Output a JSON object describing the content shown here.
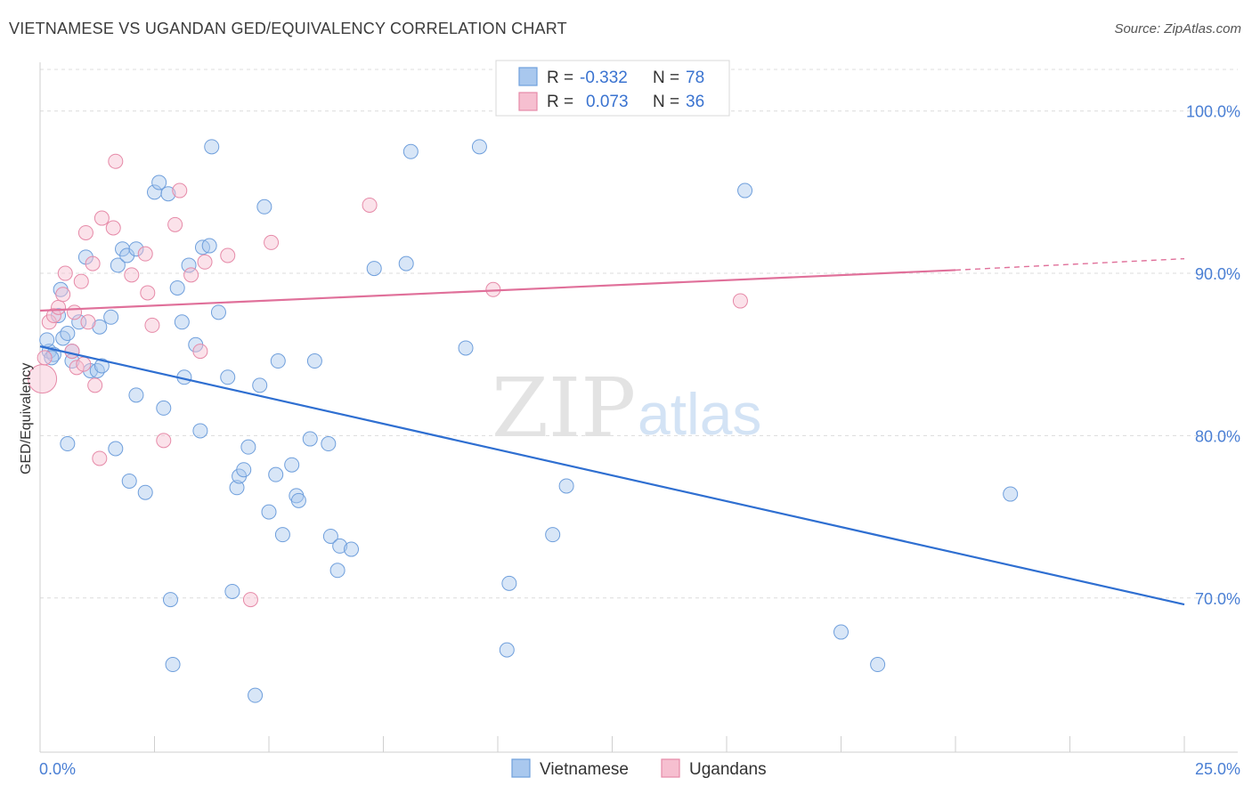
{
  "title": "VIETNAMESE VS UGANDAN GED/EQUIVALENCY CORRELATION CHART",
  "source": "Source: ZipAtlas.com",
  "watermark": {
    "zip": "ZIP",
    "atlas": "atlas"
  },
  "colors": {
    "blue_fill": "#a9c8ee",
    "blue_stroke": "#6f9fdc",
    "blue_line": "#2f6fd1",
    "pink_fill": "#f6bfd0",
    "pink_stroke": "#e68aa8",
    "pink_line": "#e0709a",
    "grid": "#dcdcdc",
    "tick_label": "#4a7fd4"
  },
  "legend": {
    "rows": [
      {
        "r_label": "R =",
        "r_value": "-0.332",
        "n_label": "N =",
        "n_value": "78"
      },
      {
        "r_label": "R =",
        "r_value": "0.073",
        "n_label": "N =",
        "n_value": "36"
      }
    ]
  },
  "bottom_legend": [
    "Vietnamese",
    "Ugandans"
  ],
  "chart_data": {
    "type": "scatter",
    "title": "VIETNAMESE VS UGANDAN GED/EQUIVALENCY CORRELATION CHART",
    "xlabel": "",
    "ylabel": "GED/Equivalency",
    "xlim": [
      0,
      25
    ],
    "ylim": [
      60.5,
      103
    ],
    "x_tick_labels": [
      {
        "x": 0,
        "label": "0.0%"
      },
      {
        "x": 25,
        "label": "25.0%"
      }
    ],
    "y_ticks": [
      {
        "y": 70,
        "label": "70.0%"
      },
      {
        "y": 80,
        "label": "80.0%"
      },
      {
        "y": 90,
        "label": "90.0%"
      },
      {
        "y": 100,
        "label": "100.0%"
      }
    ],
    "grid": true,
    "legend_position": "top-center",
    "series": [
      {
        "name": "Vietnamese",
        "r": -0.332,
        "n": 78,
        "trend": {
          "x0": 0,
          "y0": 85.5,
          "x1": 25,
          "y1": 69.6
        },
        "points": [
          [
            0.2,
            85.2
          ],
          [
            0.3,
            85.0
          ],
          [
            0.25,
            84.8
          ],
          [
            0.4,
            87.4
          ],
          [
            0.45,
            89.0
          ],
          [
            0.5,
            86.0
          ],
          [
            0.6,
            86.3
          ],
          [
            0.7,
            85.2
          ],
          [
            0.85,
            87.0
          ],
          [
            0.7,
            84.6
          ],
          [
            0.6,
            79.5
          ],
          [
            1.0,
            91.0
          ],
          [
            1.1,
            84.0
          ],
          [
            1.25,
            84.0
          ],
          [
            1.35,
            84.3
          ],
          [
            1.55,
            87.3
          ],
          [
            1.65,
            79.2
          ],
          [
            1.7,
            90.5
          ],
          [
            1.8,
            91.5
          ],
          [
            1.9,
            91.1
          ],
          [
            1.95,
            77.2
          ],
          [
            2.1,
            82.5
          ],
          [
            2.3,
            76.5
          ],
          [
            2.5,
            95.0
          ],
          [
            2.6,
            95.6
          ],
          [
            2.7,
            81.7
          ],
          [
            2.8,
            94.9
          ],
          [
            2.85,
            69.9
          ],
          [
            2.9,
            65.9
          ],
          [
            3.0,
            89.1
          ],
          [
            3.1,
            87.0
          ],
          [
            3.15,
            83.6
          ],
          [
            3.25,
            90.5
          ],
          [
            3.4,
            85.6
          ],
          [
            3.5,
            80.3
          ],
          [
            3.55,
            91.6
          ],
          [
            3.7,
            91.7
          ],
          [
            3.75,
            97.8
          ],
          [
            3.9,
            87.6
          ],
          [
            4.1,
            83.6
          ],
          [
            4.2,
            70.4
          ],
          [
            4.3,
            76.8
          ],
          [
            4.35,
            77.5
          ],
          [
            4.45,
            77.9
          ],
          [
            4.55,
            79.3
          ],
          [
            4.7,
            64.0
          ],
          [
            4.8,
            83.1
          ],
          [
            4.9,
            94.1
          ],
          [
            5.0,
            75.3
          ],
          [
            5.15,
            77.6
          ],
          [
            5.2,
            84.6
          ],
          [
            5.3,
            73.9
          ],
          [
            5.6,
            76.3
          ],
          [
            5.65,
            76.0
          ],
          [
            5.9,
            79.8
          ],
          [
            6.0,
            84.6
          ],
          [
            6.3,
            79.5
          ],
          [
            6.35,
            73.8
          ],
          [
            6.5,
            71.7
          ],
          [
            6.55,
            73.2
          ],
          [
            6.8,
            73.0
          ],
          [
            7.3,
            90.3
          ],
          [
            8.0,
            90.6
          ],
          [
            8.1,
            97.5
          ],
          [
            9.3,
            85.4
          ],
          [
            9.6,
            97.8
          ],
          [
            10.2,
            66.8
          ],
          [
            10.25,
            70.9
          ],
          [
            11.2,
            73.9
          ],
          [
            11.5,
            76.9
          ],
          [
            15.4,
            95.1
          ],
          [
            17.5,
            67.9
          ],
          [
            18.3,
            65.9
          ],
          [
            21.2,
            76.4
          ],
          [
            0.15,
            85.9
          ],
          [
            1.3,
            86.7
          ],
          [
            2.1,
            91.5
          ],
          [
            5.5,
            78.2
          ]
        ]
      },
      {
        "name": "Ugandans",
        "r": 0.073,
        "n": 36,
        "trend": {
          "x0": 0,
          "y0": 87.7,
          "x1": 20,
          "y1": 90.2,
          "dash_x1": 25,
          "dash_y1": 90.9
        },
        "points": [
          [
            0.05,
            83.5
          ],
          [
            0.1,
            84.8
          ],
          [
            0.2,
            87.0
          ],
          [
            0.3,
            87.4
          ],
          [
            0.4,
            87.9
          ],
          [
            0.5,
            88.7
          ],
          [
            0.55,
            90.0
          ],
          [
            0.7,
            85.2
          ],
          [
            0.75,
            87.6
          ],
          [
            0.8,
            84.2
          ],
          [
            0.9,
            89.5
          ],
          [
            0.95,
            84.4
          ],
          [
            1.0,
            92.5
          ],
          [
            1.05,
            87.0
          ],
          [
            1.15,
            90.6
          ],
          [
            1.2,
            83.1
          ],
          [
            1.3,
            78.6
          ],
          [
            1.35,
            93.4
          ],
          [
            1.6,
            92.8
          ],
          [
            1.65,
            96.9
          ],
          [
            2.0,
            89.9
          ],
          [
            2.3,
            91.2
          ],
          [
            2.35,
            88.8
          ],
          [
            2.45,
            86.8
          ],
          [
            2.7,
            79.7
          ],
          [
            2.95,
            93.0
          ],
          [
            3.05,
            95.1
          ],
          [
            3.3,
            89.9
          ],
          [
            3.5,
            85.2
          ],
          [
            3.6,
            90.7
          ],
          [
            4.1,
            91.1
          ],
          [
            4.6,
            69.9
          ],
          [
            5.05,
            91.9
          ],
          [
            7.2,
            94.2
          ],
          [
            9.9,
            89.0
          ],
          [
            15.3,
            88.3
          ]
        ]
      }
    ]
  }
}
